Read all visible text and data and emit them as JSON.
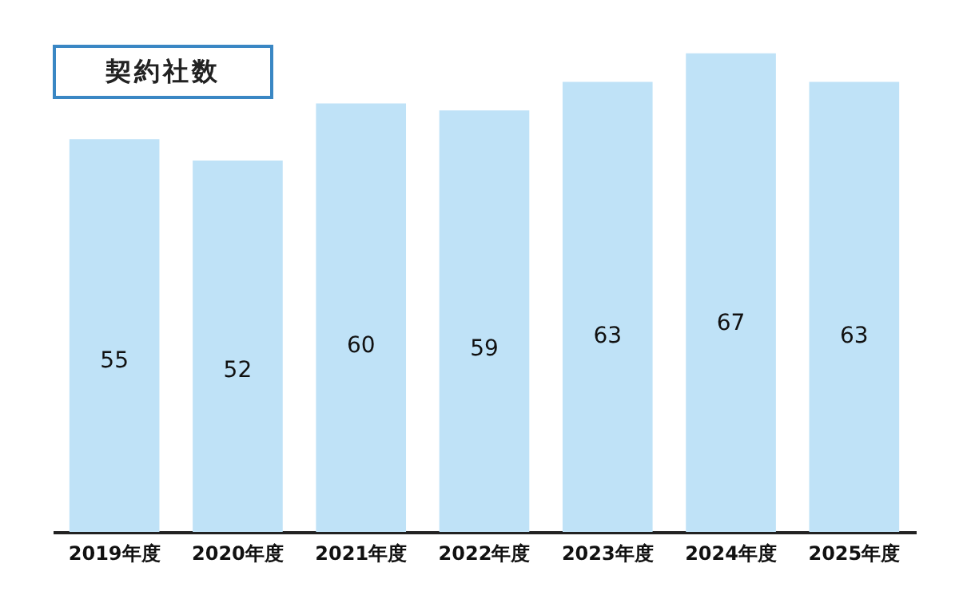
{
  "chart_data": {
    "type": "bar",
    "title": "契約社数",
    "categories": [
      "2019年度",
      "2020年度",
      "2021年度",
      "2022年度",
      "2023年度",
      "2024年度",
      "2025年度"
    ],
    "values": [
      55,
      52,
      60,
      59,
      63,
      67,
      63
    ],
    "color": "#bfe2f7",
    "data_labels": true,
    "tick_labels": "x"
  }
}
